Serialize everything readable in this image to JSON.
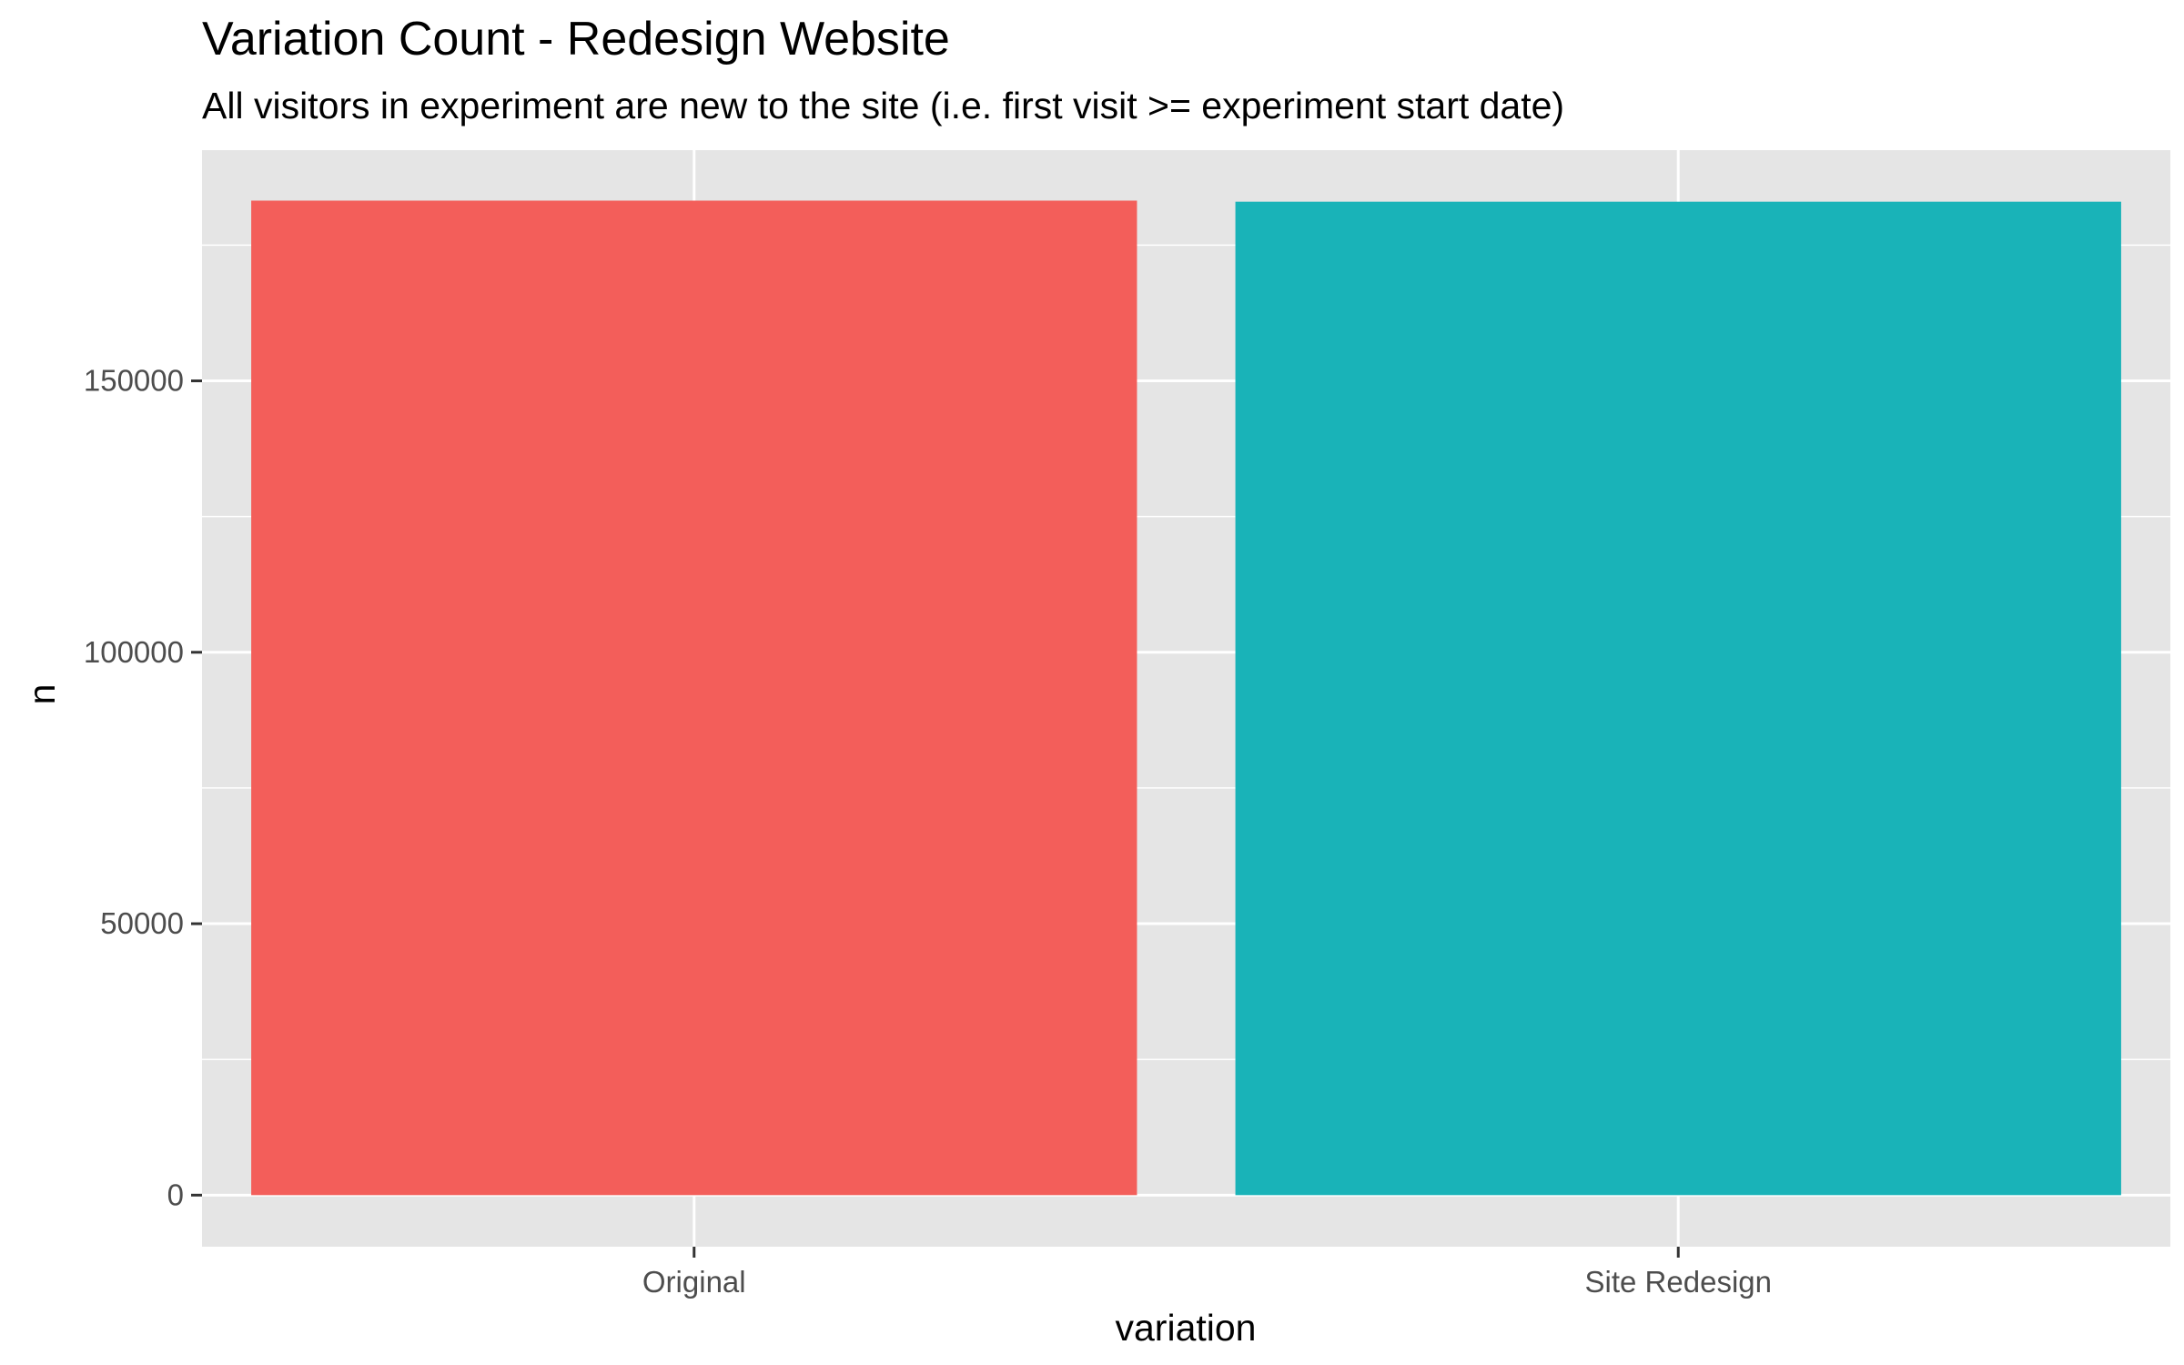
{
  "chart_data": {
    "type": "bar",
    "title": "Variation Count - Redesign Website",
    "subtitle": "All visitors in experiment are new to the site (i.e. first visit >= experiment start date)",
    "xlabel": "variation",
    "ylabel": "n",
    "categories": [
      "Original",
      "Site Redesign"
    ],
    "values": [
      183200,
      183000
    ],
    "colors": [
      "#F35E5A",
      "#19B3B8"
    ],
    "yticks": [
      0,
      50000,
      100000,
      150000
    ],
    "ytick_labels": [
      "0",
      "50000",
      "100000",
      "150000"
    ],
    "ylim": [
      -9500,
      192500
    ],
    "grid": true,
    "legend": "none",
    "panel_background": "#E5E5E5",
    "grid_color": "#FFFFFF"
  }
}
